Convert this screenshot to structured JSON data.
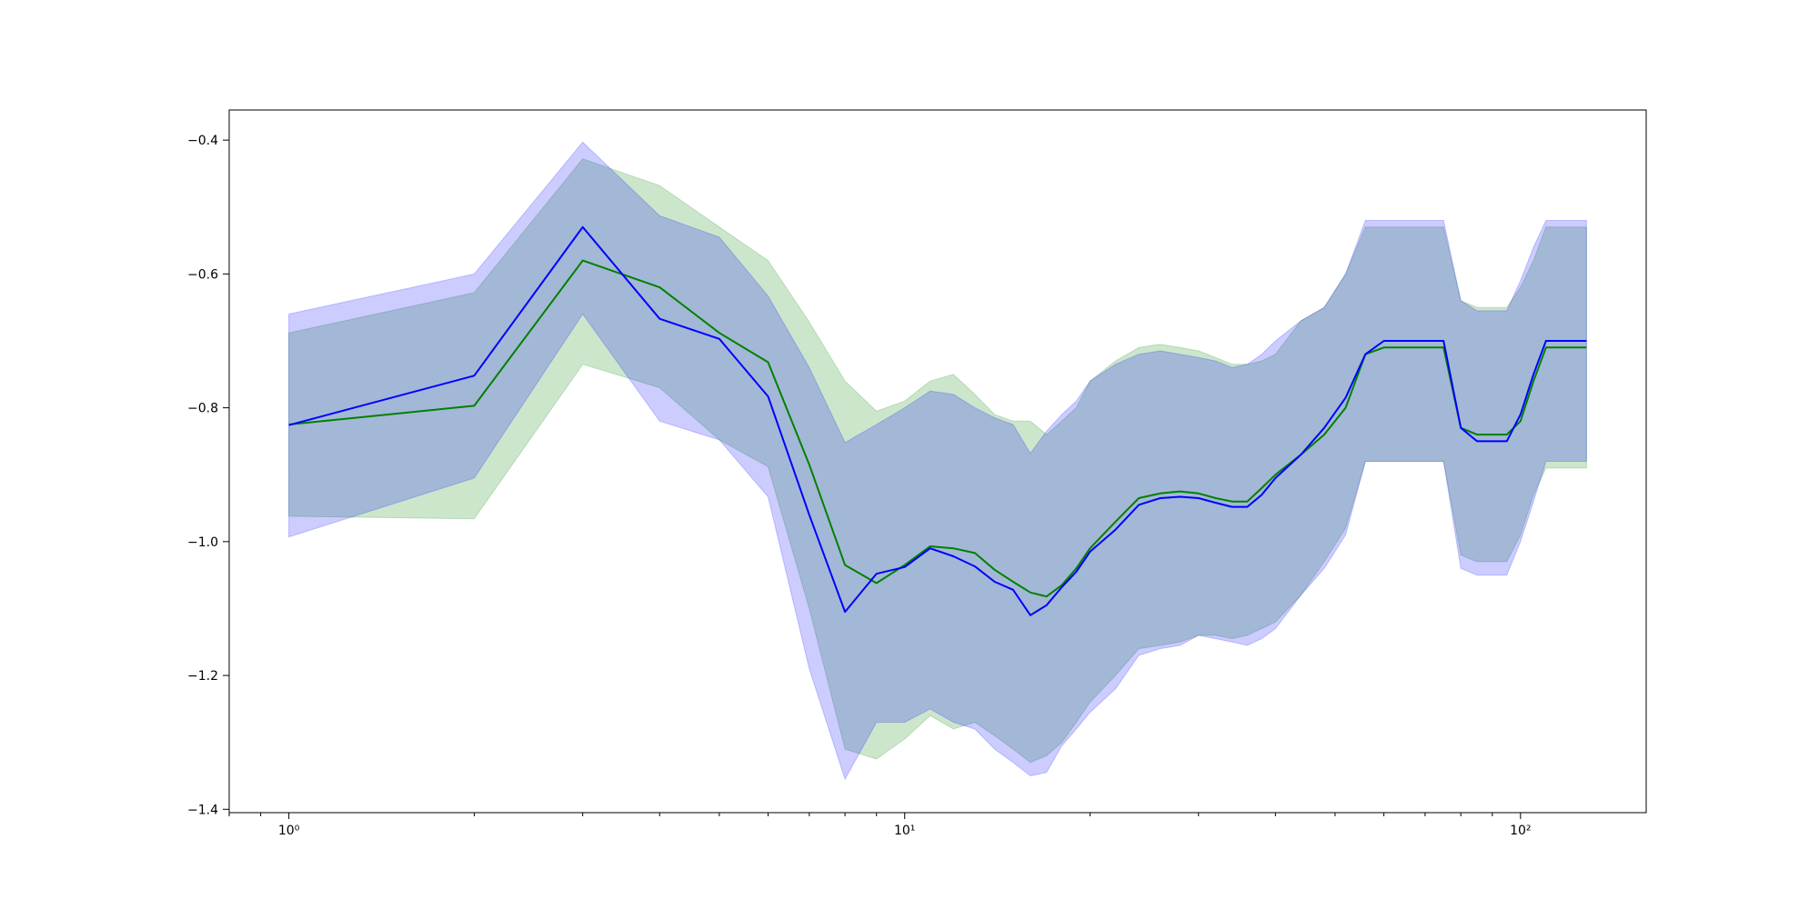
{
  "chart_data": {
    "type": "line",
    "title": "",
    "xlabel": "",
    "ylabel": "",
    "xscale": "log",
    "xlim": [
      0.8,
      160
    ],
    "ylim": [
      -1.405,
      -0.355
    ],
    "grid": false,
    "legend": "none",
    "x_ticks": [
      {
        "value": 1,
        "label": "10⁰"
      },
      {
        "value": 10,
        "label": "10¹"
      },
      {
        "value": 100,
        "label": "10²"
      }
    ],
    "y_ticks": [
      {
        "value": -0.4,
        "label": "−0.4"
      },
      {
        "value": -0.6,
        "label": "−0.6"
      },
      {
        "value": -0.8,
        "label": "−0.8"
      },
      {
        "value": -1.0,
        "label": "−1.0"
      },
      {
        "value": -1.2,
        "label": "−1.2"
      },
      {
        "value": -1.4,
        "label": "−1.4"
      }
    ],
    "series": [
      {
        "color": "#008000",
        "band_color": "#008000",
        "band_opacity": 0.2,
        "x": [
          1,
          2,
          3,
          4,
          5,
          6,
          7,
          8,
          9,
          10,
          11,
          12,
          13,
          14,
          15,
          16,
          17,
          18,
          19,
          20,
          22,
          24,
          26,
          28,
          30,
          32,
          34,
          36,
          38,
          40,
          44,
          48,
          52,
          56,
          60,
          65,
          70,
          75,
          80,
          85,
          90,
          95,
          100,
          105,
          110,
          128
        ],
        "y": [
          -0.825,
          -0.797,
          -0.58,
          -0.62,
          -0.688,
          -0.732,
          -0.885,
          -1.035,
          -1.062,
          -1.035,
          -1.007,
          -1.01,
          -1.017,
          -1.042,
          -1.06,
          -1.076,
          -1.082,
          -1.065,
          -1.04,
          -1.01,
          -0.97,
          -0.935,
          -0.928,
          -0.925,
          -0.928,
          -0.935,
          -0.94,
          -0.94,
          -0.92,
          -0.9,
          -0.87,
          -0.84,
          -0.8,
          -0.72,
          -0.71,
          -0.71,
          -0.71,
          -0.71,
          -0.83,
          -0.84,
          -0.84,
          -0.84,
          -0.82,
          -0.76,
          -0.71,
          -0.71
        ],
        "upper": [
          -0.688,
          -0.628,
          -0.428,
          -0.468,
          -0.53,
          -0.58,
          -0.672,
          -0.76,
          -0.805,
          -0.79,
          -0.76,
          -0.75,
          -0.78,
          -0.81,
          -0.82,
          -0.82,
          -0.84,
          -0.82,
          -0.8,
          -0.76,
          -0.73,
          -0.71,
          -0.705,
          -0.71,
          -0.715,
          -0.725,
          -0.735,
          -0.735,
          -0.73,
          -0.72,
          -0.67,
          -0.65,
          -0.6,
          -0.53,
          -0.53,
          -0.53,
          -0.53,
          -0.53,
          -0.64,
          -0.65,
          -0.65,
          -0.65,
          -0.62,
          -0.58,
          -0.53,
          -0.53
        ],
        "lower": [
          -0.962,
          -0.966,
          -0.735,
          -0.77,
          -0.848,
          -0.888,
          -1.1,
          -1.31,
          -1.325,
          -1.295,
          -1.26,
          -1.28,
          -1.27,
          -1.29,
          -1.31,
          -1.33,
          -1.32,
          -1.3,
          -1.27,
          -1.24,
          -1.2,
          -1.16,
          -1.155,
          -1.15,
          -1.14,
          -1.14,
          -1.145,
          -1.14,
          -1.13,
          -1.12,
          -1.08,
          -1.03,
          -0.98,
          -0.88,
          -0.88,
          -0.88,
          -0.88,
          -0.88,
          -1.02,
          -1.03,
          -1.03,
          -1.03,
          -0.99,
          -0.93,
          -0.89,
          -0.89
        ]
      },
      {
        "color": "#0000ff",
        "band_color": "#0000ff",
        "band_opacity": 0.2,
        "x": [
          1,
          2,
          3,
          4,
          5,
          6,
          7,
          8,
          9,
          10,
          11,
          12,
          13,
          14,
          15,
          16,
          17,
          18,
          19,
          20,
          22,
          24,
          26,
          28,
          30,
          32,
          34,
          36,
          38,
          40,
          44,
          48,
          52,
          56,
          60,
          65,
          70,
          75,
          80,
          85,
          90,
          95,
          100,
          105,
          110,
          128
        ],
        "y": [
          -0.826,
          -0.752,
          -0.53,
          -0.667,
          -0.697,
          -0.783,
          -0.96,
          -1.105,
          -1.048,
          -1.038,
          -1.01,
          -1.022,
          -1.037,
          -1.06,
          -1.072,
          -1.11,
          -1.095,
          -1.068,
          -1.045,
          -1.015,
          -0.982,
          -0.945,
          -0.935,
          -0.933,
          -0.935,
          -0.942,
          -0.948,
          -0.948,
          -0.93,
          -0.905,
          -0.87,
          -0.83,
          -0.785,
          -0.72,
          -0.7,
          -0.7,
          -0.7,
          -0.7,
          -0.83,
          -0.85,
          -0.85,
          -0.85,
          -0.81,
          -0.75,
          -0.7,
          -0.7
        ],
        "upper": [
          -0.66,
          -0.6,
          -0.403,
          -0.513,
          -0.545,
          -0.633,
          -0.74,
          -0.852,
          -0.825,
          -0.8,
          -0.775,
          -0.78,
          -0.8,
          -0.815,
          -0.825,
          -0.868,
          -0.835,
          -0.81,
          -0.79,
          -0.76,
          -0.735,
          -0.72,
          -0.715,
          -0.72,
          -0.725,
          -0.73,
          -0.74,
          -0.735,
          -0.72,
          -0.7,
          -0.67,
          -0.65,
          -0.6,
          -0.52,
          -0.52,
          -0.52,
          -0.52,
          -0.52,
          -0.64,
          -0.655,
          -0.655,
          -0.655,
          -0.61,
          -0.56,
          -0.52,
          -0.52
        ],
        "lower": [
          -0.993,
          -0.905,
          -0.66,
          -0.82,
          -0.848,
          -0.933,
          -1.19,
          -1.355,
          -1.27,
          -1.27,
          -1.25,
          -1.27,
          -1.28,
          -1.31,
          -1.33,
          -1.35,
          -1.345,
          -1.305,
          -1.28,
          -1.255,
          -1.22,
          -1.17,
          -1.16,
          -1.155,
          -1.14,
          -1.145,
          -1.15,
          -1.155,
          -1.145,
          -1.13,
          -1.08,
          -1.04,
          -0.99,
          -0.88,
          -0.88,
          -0.88,
          -0.88,
          -0.88,
          -1.04,
          -1.05,
          -1.05,
          -1.05,
          -1.0,
          -0.94,
          -0.88,
          -0.88
        ]
      }
    ]
  }
}
